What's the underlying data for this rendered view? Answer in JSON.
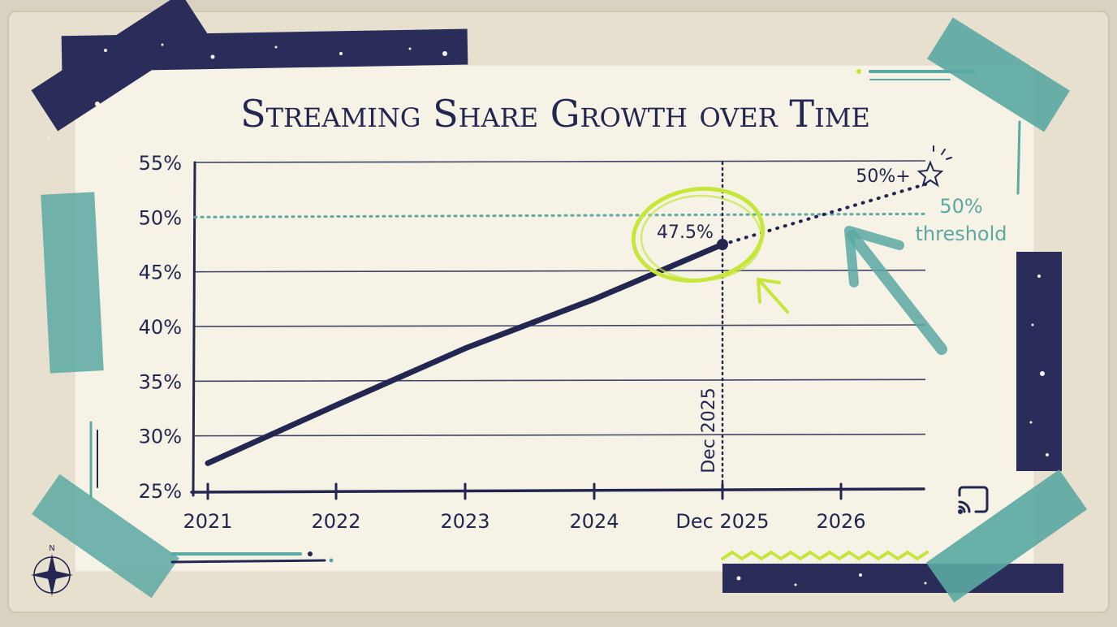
{
  "colors": {
    "paper": "#f5f1e4",
    "backing": "#e6dfcf",
    "ink": "#232650",
    "teal": "#5aa9a2",
    "lime": "#c6e63a",
    "navy_tape": "#2a2d5a"
  },
  "icons": [
    "cast-icon",
    "compass-rose-icon",
    "sparkle-star-icon"
  ],
  "chart_data": {
    "type": "line",
    "title": "Streaming Share Growth over Time",
    "x_ticks": [
      "2021",
      "2022",
      "2023",
      "2024",
      "Dec 2025",
      "2026"
    ],
    "y_ticks": [
      "25%",
      "30%",
      "35%",
      "40%",
      "45%",
      "50%",
      "55%"
    ],
    "ylim": [
      25,
      55
    ],
    "xlim": [
      "2021-01",
      "2026-12"
    ],
    "grid": true,
    "series": [
      {
        "style": "solid",
        "points": [
          {
            "x": "2021-01",
            "y": 27.5
          },
          {
            "x": "2022-01",
            "y": 32.8
          },
          {
            "x": "2023-01",
            "y": 38.0
          },
          {
            "x": "2024-01",
            "y": 42.5
          },
          {
            "x": "2025-12",
            "y": 47.5
          }
        ]
      },
      {
        "style": "dotted",
        "points": [
          {
            "x": "2025-12",
            "y": 47.5
          },
          {
            "x": "2026-12",
            "y": 53.0
          }
        ]
      }
    ],
    "threshold": {
      "y": 50,
      "label_line1": "50%",
      "label_line2": "threshold"
    },
    "marker": {
      "x": "2025-12",
      "vertical_label": "Dec 2025"
    },
    "annotations": {
      "current_value": "47.5%",
      "projection": "50%+"
    }
  }
}
